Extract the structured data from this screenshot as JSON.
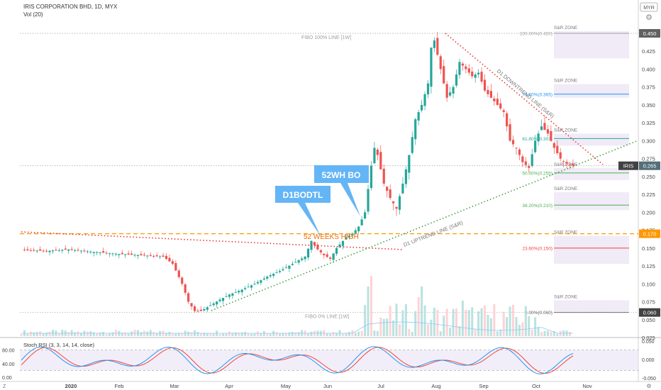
{
  "header": {
    "symbol_line": "IRIS CORPORATION BHD, 1D, MYX",
    "volume_line": "Vol (20)"
  },
  "axis": {
    "currency": "MYR",
    "settings_icon": "gear-icon"
  },
  "badges": {
    "top_price": "0.450",
    "symbol": "IRIS",
    "last_price": "0.265",
    "breakout_price": "0.170",
    "low_price": "0.060"
  },
  "fib_levels": [
    {
      "label": "100.00%(0.450)",
      "value": 0.45,
      "color": "#9e9e9e"
    },
    {
      "label": "76.60%(0.365)",
      "value": 0.365,
      "color": "#2196f3"
    },
    {
      "label": "61.80%(0.303)",
      "value": 0.303,
      "color": "#26a69a"
    },
    {
      "label": "50.00%(0.255)",
      "value": 0.255,
      "color": "#4caf50"
    },
    {
      "label": "38.20%(0.210)",
      "value": 0.21,
      "color": "#4caf50"
    },
    {
      "label": "23.60%(0.150)",
      "value": 0.15,
      "color": "#f44336"
    },
    {
      "label": "0.00%(0.060)",
      "value": 0.06,
      "color": "#616161"
    }
  ],
  "zones": [
    {
      "label": "S&R ZONE",
      "top": 0.453,
      "bottom": 0.415
    },
    {
      "label": "S&R ZONE",
      "top": 0.379,
      "bottom": 0.36
    },
    {
      "label": "S&R ZONE",
      "top": 0.31,
      "bottom": 0.293
    },
    {
      "label": "S&R ZONE",
      "top": 0.262,
      "bottom": 0.245
    },
    {
      "label": "S&R ZONE",
      "top": 0.228,
      "bottom": 0.203
    },
    {
      "label": "S&R ZONE",
      "top": 0.167,
      "bottom": 0.128
    },
    {
      "label": "S&R ZONE",
      "top": 0.077,
      "bottom": 0.06
    }
  ],
  "annotations": {
    "fibo_top": "FIBO 100% LINE [1W]",
    "fibo_bottom": "FIBO 0% LINE [1W]",
    "high52": "52 WEEKS HIGH",
    "downtrend": "D1 DOWNTREND LINE (S&R)",
    "uptrend": "D1 UPTREND LINE (S&R)",
    "callout1": "D1BODTL",
    "callout2": "52WH BO"
  },
  "stoch": {
    "title": "Stoch RSI (3, 3, 14, 14, close)",
    "ticks": [
      "80.00",
      "40.00",
      "0.00"
    ],
    "right_ticks": [
      "0.050",
      "0.000",
      "-0.050"
    ],
    "k_color": "#2196f3",
    "d_color": "#f44336"
  },
  "chart_data": {
    "type": "candlestick",
    "y_ticks": [
      "0.450",
      "0.425",
      "0.400",
      "0.375",
      "0.350",
      "0.325",
      "0.300",
      "0.275",
      "0.250",
      "0.225",
      "0.200",
      "0.175",
      "0.150",
      "0.125",
      "0.100",
      "0.075",
      "0.050",
      "0.025"
    ],
    "ylim": [
      0.02,
      0.46
    ],
    "x_ticks": [
      "2020",
      "Feb",
      "Mar",
      "Apr",
      "May",
      "Jun",
      "Jul",
      "Aug",
      "Sep",
      "Oct",
      "Nov"
    ],
    "up_color": "#26a69a",
    "down_color": "#ef5350",
    "close_path": [
      [
        0,
        0.147
      ],
      [
        8,
        0.146
      ],
      [
        15,
        0.148
      ],
      [
        22,
        0.145
      ],
      [
        30,
        0.142
      ],
      [
        38,
        0.14
      ],
      [
        45,
        0.138
      ],
      [
        48,
        0.128
      ],
      [
        51,
        0.1
      ],
      [
        53,
        0.075
      ],
      [
        55,
        0.062
      ],
      [
        57,
        0.062
      ],
      [
        60,
        0.07
      ],
      [
        63,
        0.078
      ],
      [
        66,
        0.085
      ],
      [
        70,
        0.092
      ],
      [
        74,
        0.1
      ],
      [
        78,
        0.11
      ],
      [
        82,
        0.118
      ],
      [
        86,
        0.128
      ],
      [
        90,
        0.138
      ],
      [
        92,
        0.16
      ],
      [
        94,
        0.148
      ],
      [
        96,
        0.14
      ],
      [
        98,
        0.135
      ],
      [
        100,
        0.15
      ],
      [
        103,
        0.165
      ],
      [
        105,
        0.17
      ],
      [
        107,
        0.18
      ],
      [
        109,
        0.2
      ],
      [
        111,
        0.265
      ],
      [
        112,
        0.29
      ],
      [
        113,
        0.28
      ],
      [
        115,
        0.24
      ],
      [
        117,
        0.22
      ],
      [
        119,
        0.205
      ],
      [
        121,
        0.24
      ],
      [
        123,
        0.28
      ],
      [
        125,
        0.33
      ],
      [
        127,
        0.35
      ],
      [
        129,
        0.38
      ],
      [
        130,
        0.43
      ],
      [
        131,
        0.44
      ],
      [
        133,
        0.4
      ],
      [
        135,
        0.36
      ],
      [
        137,
        0.375
      ],
      [
        139,
        0.41
      ],
      [
        141,
        0.4
      ],
      [
        143,
        0.39
      ],
      [
        145,
        0.395
      ],
      [
        147,
        0.37
      ],
      [
        149,
        0.36
      ],
      [
        151,
        0.35
      ],
      [
        153,
        0.34
      ],
      [
        155,
        0.3
      ],
      [
        157,
        0.29
      ],
      [
        159,
        0.27
      ],
      [
        161,
        0.262
      ],
      [
        163,
        0.3
      ],
      [
        165,
        0.32
      ],
      [
        167,
        0.31
      ],
      [
        169,
        0.29
      ],
      [
        171,
        0.275
      ],
      [
        173,
        0.268
      ],
      [
        175,
        0.265
      ]
    ]
  }
}
